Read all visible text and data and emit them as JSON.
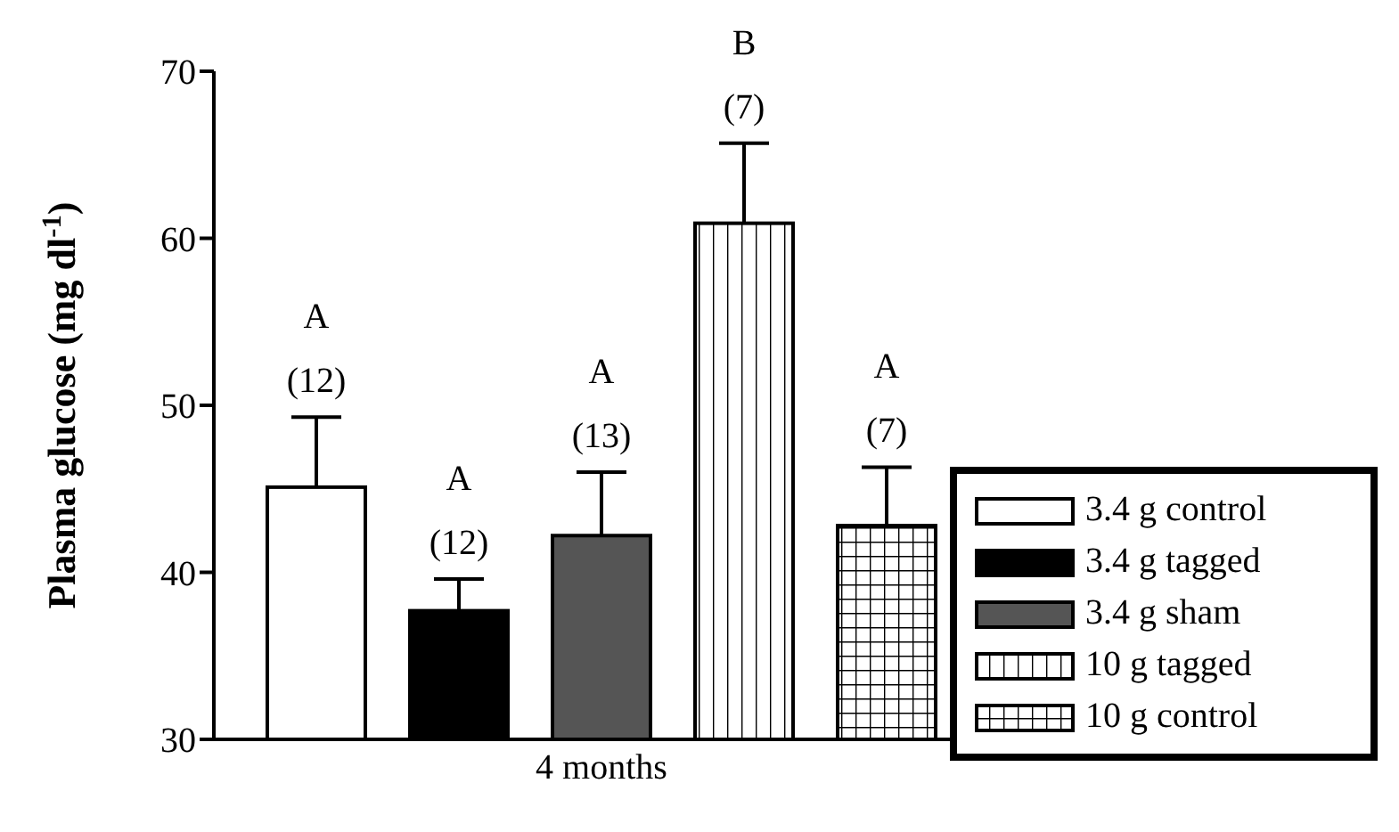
{
  "chart_data": {
    "type": "bar",
    "ylabel": "Plasma glucose (mg dl$^{-1}$)",
    "categories": [
      "4 months"
    ],
    "series": [
      {
        "name": "3.4 g control",
        "color": "#ffffff",
        "values": [
          45.1
        ],
        "errors": [
          [
            45.1,
            49.3
          ]
        ]
      },
      {
        "name": "3.4 g tagged",
        "color": "#000000",
        "values": [
          37.7
        ],
        "errors": [
          [
            37.7,
            39.6
          ]
        ]
      },
      {
        "name": "3.4 g sham",
        "color": "#555555",
        "values": [
          42.2
        ],
        "errors": [
          [
            42.2,
            46.0
          ]
        ]
      },
      {
        "name": "10 g tagged",
        "color": "#ffffff",
        "values": [
          60.9
        ],
        "errors": [
          [
            60.9,
            65.7
          ]
        ]
      },
      {
        "name": "10 g control",
        "color": "#ffffff",
        "values": [
          42.8
        ],
        "errors": [
          [
            42.8,
            46.3
          ]
        ]
      }
    ],
    "annotations": [
      "A",
      "(12)",
      "A",
      "(12)",
      "A",
      "(13)",
      "B",
      "(7)",
      "A",
      "(7)"
    ],
    "ylim": [
      30,
      70
    ],
    "yticks": [
      30,
      40,
      50,
      60,
      70
    ],
    "grid": false,
    "legend": "right"
  }
}
